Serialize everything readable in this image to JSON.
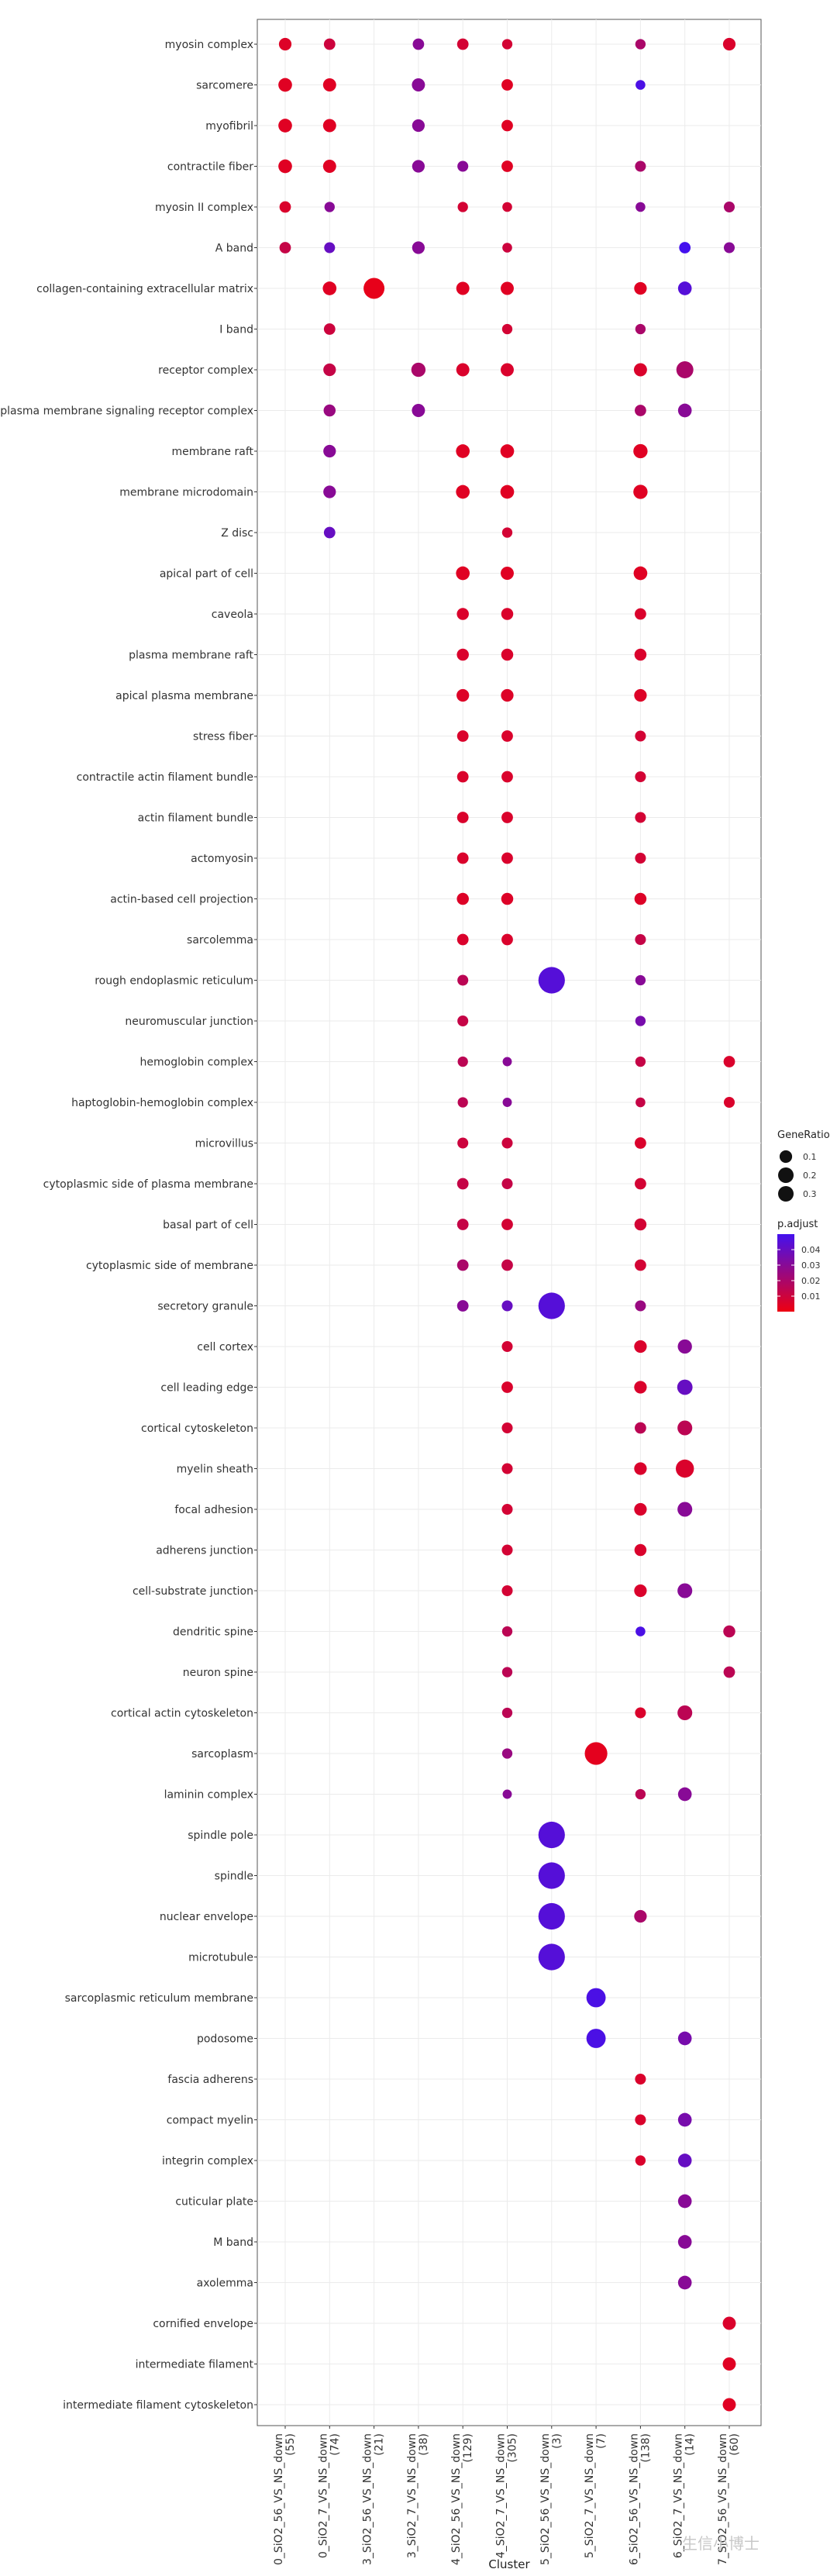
{
  "chart_data": {
    "type": "dot",
    "title": "",
    "xlabel": "Cluster",
    "ylabel": "",
    "clusters": [
      "0_SiO2_56_VS_NS_down\n(55)",
      "0_SiO2_7_VS_NS_down\n(74)",
      "3_SiO2_56_VS_NS_down\n(21)",
      "3_SiO2_7_VS_NS_down\n(38)",
      "4_SiO2_56_VS_NS_down\n(129)",
      "4_SiO2_7_VS_NS_down\n(305)",
      "5_SiO2_56_VS_NS_down\n(3)",
      "5_SiO2_7_VS_NS_down\n(7)",
      "6_SiO2_56_VS_NS_down\n(138)",
      "6_SiO2_7_VS_NS_down\n(14)",
      "7_SiO2_56_VS_NS_down\n(60)"
    ],
    "terms": [
      "myosin complex",
      "sarcomere",
      "myofibril",
      "contractile fiber",
      "myosin II complex",
      "A band",
      "collagen-containing extracellular matrix",
      "I band",
      "receptor complex",
      "plasma membrane signaling receptor complex",
      "membrane raft",
      "membrane microdomain",
      "Z disc",
      "apical part of cell",
      "caveola",
      "plasma membrane raft",
      "apical plasma membrane",
      "stress fiber",
      "contractile actin filament bundle",
      "actin filament bundle",
      "actomyosin",
      "actin-based cell projection",
      "sarcolemma",
      "rough endoplasmic reticulum",
      "neuromuscular junction",
      "hemoglobin complex",
      "haptoglobin-hemoglobin complex",
      "microvillus",
      "cytoplasmic side of plasma membrane",
      "basal part of cell",
      "cytoplasmic side of membrane",
      "secretory granule",
      "cell cortex",
      "cell leading edge",
      "cortical cytoskeleton",
      "myelin sheath",
      "focal adhesion",
      "adherens junction",
      "cell-substrate junction",
      "dendritic spine",
      "neuron spine",
      "cortical actin cytoskeleton",
      "sarcoplasm",
      "laminin complex",
      "spindle pole",
      "spindle",
      "nuclear envelope",
      "microtubule",
      "sarcoplasmic reticulum membrane",
      "podosome",
      "fascia adherens",
      "compact myelin",
      "integrin complex",
      "cuticular plate",
      "M band",
      "axolemma",
      "cornified envelope",
      "intermediate filament",
      "intermediate filament cytoskeleton"
    ],
    "points": [
      [
        0,
        0,
        0.1,
        0.005
      ],
      [
        1,
        0,
        0.08,
        0.01
      ],
      [
        3,
        0,
        0.08,
        0.03
      ],
      [
        4,
        0,
        0.08,
        0.008
      ],
      [
        5,
        0,
        0.06,
        0.008
      ],
      [
        8,
        0,
        0.06,
        0.02
      ],
      [
        10,
        0,
        0.1,
        0.006
      ],
      [
        0,
        1,
        0.12,
        0.004
      ],
      [
        1,
        1,
        0.11,
        0.004
      ],
      [
        3,
        1,
        0.11,
        0.03
      ],
      [
        5,
        1,
        0.08,
        0.004
      ],
      [
        8,
        1,
        0.05,
        0.048
      ],
      [
        0,
        2,
        0.12,
        0.004
      ],
      [
        1,
        2,
        0.11,
        0.004
      ],
      [
        3,
        2,
        0.1,
        0.03
      ],
      [
        5,
        2,
        0.08,
        0.004
      ],
      [
        0,
        3,
        0.12,
        0.004
      ],
      [
        1,
        3,
        0.11,
        0.004
      ],
      [
        3,
        3,
        0.1,
        0.03
      ],
      [
        4,
        3,
        0.07,
        0.03
      ],
      [
        5,
        3,
        0.08,
        0.004
      ],
      [
        8,
        3,
        0.07,
        0.02
      ],
      [
        0,
        4,
        0.08,
        0.006
      ],
      [
        1,
        4,
        0.06,
        0.03
      ],
      [
        4,
        4,
        0.06,
        0.008
      ],
      [
        5,
        4,
        0.05,
        0.008
      ],
      [
        8,
        4,
        0.05,
        0.03
      ],
      [
        10,
        4,
        0.07,
        0.02
      ],
      [
        0,
        5,
        0.08,
        0.012
      ],
      [
        1,
        5,
        0.07,
        0.04
      ],
      [
        3,
        5,
        0.1,
        0.03
      ],
      [
        5,
        5,
        0.05,
        0.01
      ],
      [
        9,
        5,
        0.08,
        0.05
      ],
      [
        10,
        5,
        0.07,
        0.03
      ],
      [
        1,
        6,
        0.12,
        0.004
      ],
      [
        2,
        6,
        0.25,
        0.002
      ],
      [
        4,
        6,
        0.11,
        0.004
      ],
      [
        5,
        6,
        0.11,
        0.004
      ],
      [
        8,
        6,
        0.1,
        0.004
      ],
      [
        9,
        6,
        0.12,
        0.045
      ],
      [
        1,
        7,
        0.08,
        0.01
      ],
      [
        5,
        7,
        0.06,
        0.008
      ],
      [
        8,
        7,
        0.06,
        0.02
      ],
      [
        1,
        8,
        0.1,
        0.012
      ],
      [
        3,
        8,
        0.13,
        0.02
      ],
      [
        4,
        8,
        0.11,
        0.006
      ],
      [
        5,
        8,
        0.11,
        0.006
      ],
      [
        8,
        8,
        0.11,
        0.006
      ],
      [
        9,
        8,
        0.18,
        0.02
      ],
      [
        1,
        9,
        0.09,
        0.025
      ],
      [
        3,
        9,
        0.11,
        0.03
      ],
      [
        8,
        9,
        0.08,
        0.02
      ],
      [
        9,
        9,
        0.12,
        0.03
      ],
      [
        1,
        10,
        0.1,
        0.03
      ],
      [
        4,
        10,
        0.12,
        0.004
      ],
      [
        5,
        10,
        0.12,
        0.004
      ],
      [
        8,
        10,
        0.13,
        0.004
      ],
      [
        1,
        11,
        0.1,
        0.03
      ],
      [
        4,
        11,
        0.12,
        0.004
      ],
      [
        5,
        11,
        0.12,
        0.004
      ],
      [
        8,
        11,
        0.13,
        0.004
      ],
      [
        1,
        12,
        0.08,
        0.04
      ],
      [
        5,
        12,
        0.06,
        0.008
      ],
      [
        4,
        13,
        0.12,
        0.004
      ],
      [
        5,
        13,
        0.11,
        0.004
      ],
      [
        8,
        13,
        0.12,
        0.004
      ],
      [
        4,
        14,
        0.09,
        0.006
      ],
      [
        5,
        14,
        0.09,
        0.006
      ],
      [
        8,
        14,
        0.08,
        0.006
      ],
      [
        4,
        15,
        0.09,
        0.006
      ],
      [
        5,
        15,
        0.09,
        0.006
      ],
      [
        8,
        15,
        0.09,
        0.006
      ],
      [
        4,
        16,
        0.1,
        0.005
      ],
      [
        5,
        16,
        0.1,
        0.005
      ],
      [
        8,
        16,
        0.1,
        0.005
      ],
      [
        4,
        17,
        0.08,
        0.006
      ],
      [
        5,
        17,
        0.08,
        0.006
      ],
      [
        8,
        17,
        0.07,
        0.008
      ],
      [
        4,
        18,
        0.08,
        0.006
      ],
      [
        5,
        18,
        0.08,
        0.006
      ],
      [
        8,
        18,
        0.07,
        0.008
      ],
      [
        4,
        19,
        0.08,
        0.006
      ],
      [
        5,
        19,
        0.08,
        0.006
      ],
      [
        8,
        19,
        0.07,
        0.008
      ],
      [
        4,
        20,
        0.08,
        0.006
      ],
      [
        5,
        20,
        0.08,
        0.006
      ],
      [
        8,
        20,
        0.07,
        0.008
      ],
      [
        4,
        21,
        0.09,
        0.005
      ],
      [
        5,
        21,
        0.09,
        0.005
      ],
      [
        8,
        21,
        0.09,
        0.005
      ],
      [
        4,
        22,
        0.08,
        0.006
      ],
      [
        5,
        22,
        0.08,
        0.006
      ],
      [
        8,
        22,
        0.07,
        0.012
      ],
      [
        4,
        23,
        0.07,
        0.015
      ],
      [
        6,
        23,
        0.35,
        0.045
      ],
      [
        8,
        23,
        0.06,
        0.03
      ],
      [
        4,
        24,
        0.07,
        0.012
      ],
      [
        8,
        24,
        0.06,
        0.035
      ],
      [
        4,
        25,
        0.06,
        0.015
      ],
      [
        5,
        25,
        0.04,
        0.03
      ],
      [
        8,
        25,
        0.06,
        0.012
      ],
      [
        10,
        25,
        0.08,
        0.006
      ],
      [
        4,
        26,
        0.06,
        0.015
      ],
      [
        5,
        26,
        0.04,
        0.03
      ],
      [
        8,
        26,
        0.05,
        0.012
      ],
      [
        10,
        26,
        0.07,
        0.006
      ],
      [
        4,
        27,
        0.07,
        0.01
      ],
      [
        5,
        27,
        0.07,
        0.01
      ],
      [
        8,
        27,
        0.08,
        0.006
      ],
      [
        4,
        28,
        0.08,
        0.012
      ],
      [
        5,
        28,
        0.07,
        0.012
      ],
      [
        8,
        28,
        0.08,
        0.008
      ],
      [
        4,
        29,
        0.08,
        0.012
      ],
      [
        5,
        29,
        0.08,
        0.008
      ],
      [
        8,
        29,
        0.09,
        0.008
      ],
      [
        4,
        30,
        0.08,
        0.02
      ],
      [
        5,
        30,
        0.08,
        0.012
      ],
      [
        8,
        30,
        0.08,
        0.008
      ],
      [
        4,
        31,
        0.08,
        0.03
      ],
      [
        5,
        31,
        0.07,
        0.04
      ],
      [
        6,
        31,
        0.35,
        0.045
      ],
      [
        8,
        31,
        0.07,
        0.025
      ],
      [
        5,
        32,
        0.07,
        0.008
      ],
      [
        8,
        32,
        0.1,
        0.006
      ],
      [
        9,
        32,
        0.13,
        0.03
      ],
      [
        5,
        33,
        0.08,
        0.006
      ],
      [
        8,
        33,
        0.1,
        0.006
      ],
      [
        9,
        33,
        0.15,
        0.04
      ],
      [
        5,
        34,
        0.07,
        0.008
      ],
      [
        8,
        34,
        0.08,
        0.015
      ],
      [
        9,
        34,
        0.14,
        0.015
      ],
      [
        5,
        35,
        0.07,
        0.008
      ],
      [
        8,
        35,
        0.1,
        0.006
      ],
      [
        9,
        35,
        0.2,
        0.006
      ],
      [
        5,
        36,
        0.07,
        0.008
      ],
      [
        8,
        36,
        0.1,
        0.006
      ],
      [
        9,
        36,
        0.14,
        0.03
      ],
      [
        5,
        37,
        0.07,
        0.008
      ],
      [
        8,
        37,
        0.09,
        0.006
      ],
      [
        5,
        38,
        0.07,
        0.008
      ],
      [
        8,
        38,
        0.1,
        0.006
      ],
      [
        9,
        38,
        0.14,
        0.03
      ],
      [
        5,
        39,
        0.06,
        0.015
      ],
      [
        8,
        39,
        0.05,
        0.048
      ],
      [
        10,
        39,
        0.09,
        0.015
      ],
      [
        5,
        40,
        0.06,
        0.015
      ],
      [
        10,
        40,
        0.08,
        0.015
      ],
      [
        5,
        41,
        0.06,
        0.015
      ],
      [
        8,
        41,
        0.07,
        0.006
      ],
      [
        9,
        41,
        0.14,
        0.015
      ],
      [
        5,
        42,
        0.06,
        0.025
      ],
      [
        7,
        42,
        0.28,
        0.003
      ],
      [
        5,
        43,
        0.04,
        0.03
      ],
      [
        8,
        43,
        0.06,
        0.015
      ],
      [
        9,
        43,
        0.12,
        0.03
      ],
      [
        6,
        44,
        0.35,
        0.045
      ],
      [
        6,
        45,
        0.35,
        0.045
      ],
      [
        6,
        46,
        0.35,
        0.045
      ],
      [
        8,
        46,
        0.1,
        0.02
      ],
      [
        6,
        47,
        0.35,
        0.045
      ],
      [
        7,
        48,
        0.22,
        0.048
      ],
      [
        7,
        49,
        0.22,
        0.048
      ],
      [
        9,
        49,
        0.12,
        0.035
      ],
      [
        8,
        50,
        0.07,
        0.006
      ],
      [
        8,
        51,
        0.07,
        0.006
      ],
      [
        9,
        51,
        0.12,
        0.035
      ],
      [
        8,
        52,
        0.06,
        0.006
      ],
      [
        9,
        52,
        0.12,
        0.04
      ],
      [
        9,
        53,
        0.12,
        0.03
      ],
      [
        9,
        54,
        0.12,
        0.03
      ],
      [
        9,
        55,
        0.12,
        0.03
      ],
      [
        10,
        56,
        0.11,
        0.006
      ],
      [
        10,
        57,
        0.11,
        0.004
      ],
      [
        10,
        58,
        0.11,
        0.004
      ]
    ],
    "point_fields": [
      "cluster_index",
      "term_index",
      "GeneRatio",
      "p.adjust"
    ],
    "legend": {
      "size_title": "GeneRatio",
      "size_breaks": [
        0.1,
        0.2,
        0.3
      ],
      "size_labels": [
        "0.1",
        "0.2",
        "0.3"
      ],
      "color_title": "p.adjust",
      "color_range": [
        0.0,
        0.05
      ],
      "color_breaks": [
        0.04,
        0.03,
        0.02,
        0.01
      ],
      "color_labels": [
        "0.04",
        "0.03",
        "0.02",
        "0.01"
      ],
      "color_low": "#ee0011",
      "color_high": "#4411ee",
      "position": "right"
    },
    "grid": true
  },
  "watermark": "生信小博士"
}
